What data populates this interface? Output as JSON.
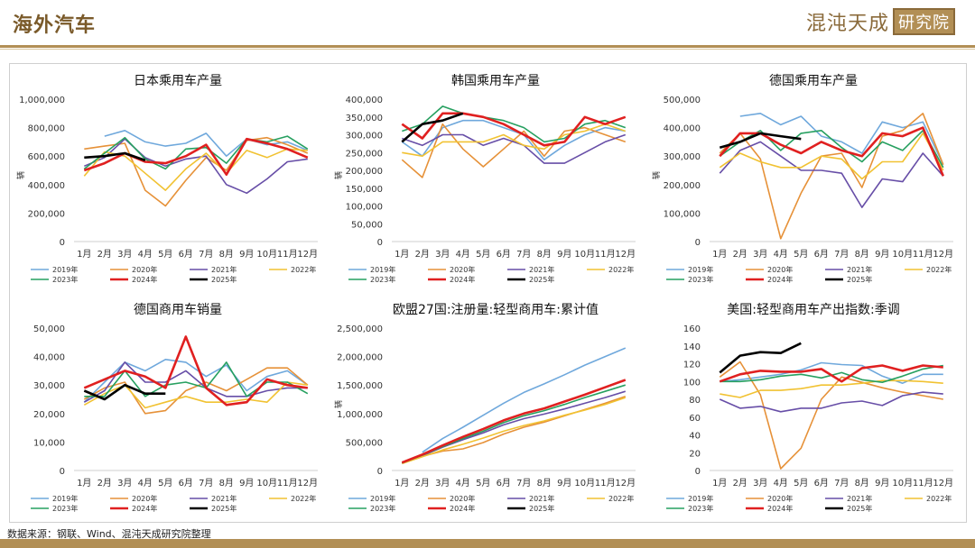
{
  "header": {
    "title": "海外汽车",
    "brand_main": "混沌天成",
    "brand_box": "研究院"
  },
  "footer": {
    "source": "数据来源：钢联、Wind、混沌天成研究院整理"
  },
  "legend_years": [
    "2019年",
    "2020年",
    "2021年",
    "2022年",
    "2023年",
    "2024年",
    "2025年"
  ],
  "colors": {
    "2019年": "#6fa8dc",
    "2020年": "#e69138",
    "2021年": "#674ea7",
    "2022年": "#f1c232",
    "2023年": "#27a060",
    "2024年": "#e02020",
    "2025年": "#000000"
  },
  "chart_data": [
    {
      "type": "line",
      "title": "日本乘用车产量",
      "ylabel": "辆",
      "categories": [
        "1月",
        "2月",
        "3月",
        "4月",
        "5月",
        "6月",
        "7月",
        "8月",
        "9月",
        "10月",
        "11月",
        "12月"
      ],
      "ylim": [
        0,
        1000000
      ],
      "yticks": [
        0,
        200000,
        400000,
        600000,
        800000,
        1000000
      ],
      "ytick_labels": [
        "0",
        "200,000",
        "400,000",
        "600,000",
        "800,000",
        "1,000,000"
      ],
      "series": [
        {
          "name": "2019年",
          "values": [
            null,
            740000,
            780000,
            700000,
            670000,
            690000,
            760000,
            600000,
            720000,
            680000,
            700000,
            640000
          ]
        },
        {
          "name": "2020年",
          "values": [
            650000,
            670000,
            690000,
            360000,
            250000,
            430000,
            590000,
            500000,
            710000,
            730000,
            680000,
            620000
          ]
        },
        {
          "name": "2021年",
          "values": [
            530000,
            590000,
            720000,
            590000,
            530000,
            580000,
            600000,
            400000,
            340000,
            440000,
            560000,
            580000
          ]
        },
        {
          "name": "2022年",
          "values": [
            460000,
            630000,
            600000,
            480000,
            360000,
            510000,
            620000,
            480000,
            640000,
            590000,
            650000,
            640000
          ]
        },
        {
          "name": "2023年",
          "values": [
            510000,
            620000,
            730000,
            580000,
            510000,
            650000,
            660000,
            550000,
            720000,
            700000,
            740000,
            650000
          ]
        },
        {
          "name": "2024年",
          "values": [
            500000,
            550000,
            620000,
            560000,
            550000,
            600000,
            680000,
            470000,
            720000,
            690000,
            650000,
            590000
          ]
        },
        {
          "name": "2025年",
          "values": [
            590000,
            600000,
            620000,
            570000,
            null,
            null,
            null,
            null,
            null,
            null,
            null,
            null
          ]
        }
      ]
    },
    {
      "type": "line",
      "title": "韩国乘用车产量",
      "ylabel": "辆",
      "categories": [
        "1月",
        "2月",
        "3月",
        "4月",
        "5月",
        "6月",
        "7月",
        "8月",
        "9月",
        "10月",
        "11月",
        "12月"
      ],
      "ylim": [
        0,
        400000
      ],
      "yticks": [
        0,
        50000,
        100000,
        150000,
        200000,
        250000,
        300000,
        350000,
        400000
      ],
      "ytick_labels": [
        "0",
        "50,000",
        "100,000",
        "150,000",
        "200,000",
        "250,000",
        "300,000",
        "350,000",
        "400,000"
      ],
      "series": [
        {
          "name": "2019年",
          "values": [
            280000,
            240000,
            320000,
            340000,
            340000,
            320000,
            300000,
            230000,
            270000,
            300000,
            320000,
            310000
          ]
        },
        {
          "name": "2020年",
          "values": [
            230000,
            180000,
            330000,
            260000,
            210000,
            260000,
            310000,
            240000,
            310000,
            320000,
            300000,
            280000
          ]
        },
        {
          "name": "2021年",
          "values": [
            290000,
            270000,
            300000,
            300000,
            270000,
            290000,
            270000,
            220000,
            220000,
            250000,
            280000,
            300000
          ]
        },
        {
          "name": "2022年",
          "values": [
            250000,
            240000,
            280000,
            280000,
            280000,
            300000,
            270000,
            260000,
            300000,
            310000,
            330000,
            310000
          ]
        },
        {
          "name": "2023年",
          "values": [
            310000,
            330000,
            380000,
            360000,
            350000,
            340000,
            320000,
            280000,
            290000,
            330000,
            340000,
            320000
          ]
        },
        {
          "name": "2024年",
          "values": [
            330000,
            290000,
            360000,
            360000,
            350000,
            330000,
            300000,
            270000,
            280000,
            350000,
            330000,
            350000
          ]
        },
        {
          "name": "2025年",
          "values": [
            280000,
            330000,
            340000,
            360000,
            null,
            null,
            null,
            null,
            null,
            null,
            null,
            null
          ]
        }
      ]
    },
    {
      "type": "line",
      "title": "德国乘用车产量",
      "ylabel": "辆",
      "categories": [
        "1月",
        "2月",
        "3月",
        "4月",
        "5月",
        "6月",
        "7月",
        "8月",
        "9月",
        "10月",
        "11月",
        "12月"
      ],
      "ylim": [
        0,
        500000
      ],
      "yticks": [
        0,
        100000,
        200000,
        300000,
        400000,
        500000
      ],
      "ytick_labels": [
        "0",
        "100,000",
        "200,000",
        "300,000",
        "400,000",
        "500,000"
      ],
      "series": [
        {
          "name": "2019年",
          "values": [
            null,
            440000,
            450000,
            410000,
            440000,
            370000,
            350000,
            310000,
            420000,
            400000,
            420000,
            270000
          ]
        },
        {
          "name": "2020年",
          "values": [
            310000,
            380000,
            290000,
            10000,
            170000,
            300000,
            310000,
            190000,
            370000,
            390000,
            450000,
            270000
          ]
        },
        {
          "name": "2021年",
          "values": [
            240000,
            320000,
            350000,
            300000,
            250000,
            250000,
            240000,
            120000,
            220000,
            210000,
            310000,
            230000
          ]
        },
        {
          "name": "2022年",
          "values": [
            260000,
            310000,
            280000,
            260000,
            260000,
            300000,
            290000,
            220000,
            280000,
            280000,
            380000,
            250000
          ]
        },
        {
          "name": "2023年",
          "values": [
            300000,
            350000,
            390000,
            320000,
            380000,
            390000,
            330000,
            280000,
            350000,
            320000,
            390000,
            260000
          ]
        },
        {
          "name": "2024年",
          "values": [
            300000,
            380000,
            380000,
            340000,
            310000,
            350000,
            320000,
            300000,
            380000,
            370000,
            400000,
            230000
          ]
        },
        {
          "name": "2025年",
          "values": [
            330000,
            350000,
            380000,
            370000,
            360000,
            null,
            null,
            null,
            null,
            null,
            null,
            null
          ]
        }
      ]
    },
    {
      "type": "line",
      "title": "德国商用车销量",
      "ylabel": "",
      "categories": [
        "1月",
        "2月",
        "3月",
        "4月",
        "5月",
        "6月",
        "7月",
        "8月",
        "9月",
        "10月",
        "11月",
        "12月"
      ],
      "ylim": [
        0,
        50000
      ],
      "yticks": [
        0,
        10000,
        20000,
        30000,
        40000,
        50000
      ],
      "ytick_labels": [
        "0",
        "10,000",
        "20,000",
        "30,000",
        "40,000",
        "50,000"
      ],
      "series": [
        {
          "name": "2019年",
          "values": [
            24000,
            31000,
            38000,
            35000,
            39000,
            38000,
            33000,
            37000,
            28000,
            33000,
            35000,
            30000
          ]
        },
        {
          "name": "2020年",
          "values": [
            25000,
            29000,
            31000,
            20000,
            21000,
            28000,
            31000,
            28000,
            32000,
            36000,
            36000,
            30000
          ]
        },
        {
          "name": "2021年",
          "values": [
            24000,
            28000,
            38000,
            31000,
            31000,
            35000,
            29000,
            26000,
            26000,
            28000,
            29000,
            29000
          ]
        },
        {
          "name": "2022年",
          "values": [
            23000,
            27000,
            30000,
            22000,
            24000,
            26000,
            24000,
            24000,
            25000,
            24000,
            31000,
            30000
          ]
        },
        {
          "name": "2023年",
          "values": [
            26000,
            26000,
            35000,
            26000,
            30000,
            31000,
            29000,
            38000,
            26000,
            31000,
            31000,
            27000
          ]
        },
        {
          "name": "2024年",
          "values": [
            29000,
            32000,
            35000,
            33000,
            29000,
            47000,
            29000,
            23000,
            24000,
            32000,
            30000,
            29000
          ]
        },
        {
          "name": "2025年",
          "values": [
            28000,
            25000,
            30000,
            27000,
            27000,
            null,
            null,
            null,
            null,
            null,
            null,
            null
          ]
        }
      ]
    },
    {
      "type": "line",
      "title": "欧盟27国:注册量:轻型商用车:累计值",
      "ylabel": "辆",
      "categories": [
        "1月",
        "2月",
        "3月",
        "4月",
        "5月",
        "6月",
        "7月",
        "8月",
        "9月",
        "10月",
        "11月",
        "12月"
      ],
      "ylim": [
        0,
        2500000
      ],
      "yticks": [
        0,
        500000,
        1000000,
        1500000,
        2000000,
        2500000
      ],
      "ytick_labels": [
        "0",
        "500,000",
        "1,000,000",
        "1,500,000",
        "2,000,000",
        "2,500,000"
      ],
      "series": [
        {
          "name": "2019年",
          "values": [
            null,
            320000,
            560000,
            760000,
            970000,
            1180000,
            1370000,
            1520000,
            1680000,
            1850000,
            2000000,
            2150000
          ]
        },
        {
          "name": "2020年",
          "values": [
            130000,
            250000,
            340000,
            380000,
            490000,
            640000,
            760000,
            850000,
            960000,
            1070000,
            1180000,
            1300000
          ]
        },
        {
          "name": "2021年",
          "values": [
            130000,
            260000,
            410000,
            540000,
            660000,
            800000,
            910000,
            990000,
            1080000,
            1180000,
            1280000,
            1390000
          ]
        },
        {
          "name": "2022年",
          "values": [
            120000,
            240000,
            360000,
            460000,
            570000,
            690000,
            790000,
            870000,
            970000,
            1060000,
            1160000,
            1280000
          ]
        },
        {
          "name": "2023年",
          "values": [
            130000,
            270000,
            420000,
            560000,
            690000,
            840000,
            960000,
            1050000,
            1160000,
            1280000,
            1390000,
            1500000
          ]
        },
        {
          "name": "2024年",
          "values": [
            140000,
            280000,
            440000,
            590000,
            730000,
            880000,
            1000000,
            1090000,
            1210000,
            1330000,
            1460000,
            1590000
          ]
        },
        {
          "name": "2025年",
          "values": [
            null,
            null,
            null,
            null,
            null,
            null,
            null,
            null,
            null,
            null,
            null,
            null
          ]
        }
      ]
    },
    {
      "type": "line",
      "title": "美国:轻型商用车产出指数:季调",
      "ylabel": "",
      "categories": [
        "1月",
        "2月",
        "3月",
        "4月",
        "5月",
        "6月",
        "7月",
        "8月",
        "9月",
        "10月",
        "11月",
        "12月"
      ],
      "ylim": [
        0,
        160
      ],
      "yticks": [
        0,
        20,
        40,
        60,
        80,
        100,
        120,
        140,
        160
      ],
      "ytick_labels": [
        "0",
        "20",
        "40",
        "60",
        "80",
        "100",
        "120",
        "140",
        "160"
      ],
      "series": [
        {
          "name": "2019年",
          "values": [
            100,
            102,
            105,
            108,
            113,
            121,
            119,
            118,
            106,
            98,
            108,
            108
          ]
        },
        {
          "name": "2020年",
          "values": [
            105,
            122,
            85,
            2,
            25,
            80,
            105,
            99,
            93,
            88,
            84,
            80
          ]
        },
        {
          "name": "2021年",
          "values": [
            80,
            70,
            72,
            66,
            70,
            70,
            76,
            78,
            73,
            84,
            88,
            86
          ]
        },
        {
          "name": "2022年",
          "values": [
            86,
            82,
            90,
            90,
            92,
            96,
            96,
            98,
            101,
            101,
            100,
            98
          ]
        },
        {
          "name": "2023年",
          "values": [
            100,
            100,
            102,
            106,
            108,
            104,
            110,
            102,
            99,
            106,
            114,
            118
          ]
        },
        {
          "name": "2024年",
          "values": [
            100,
            108,
            112,
            111,
            111,
            114,
            100,
            115,
            118,
            112,
            118,
            116
          ]
        },
        {
          "name": "2025年",
          "values": [
            110,
            129,
            133,
            132,
            143,
            null,
            null,
            null,
            null,
            null,
            null,
            null
          ]
        }
      ]
    }
  ]
}
